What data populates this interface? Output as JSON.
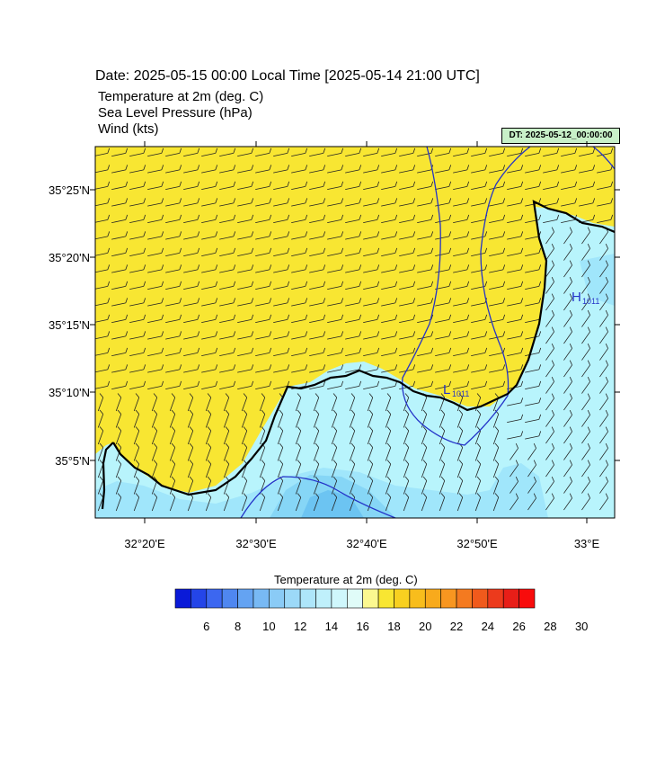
{
  "header": {
    "date": "Date: 2025-05-15  00:00 Local Time [2025-05-14  21:00 UTC]",
    "variables": [
      "Temperature at 2m   (deg. C)",
      "Sea Level Pressure   (hPa)",
      "Wind   (kts)"
    ],
    "dt_label": "DT: 2025-05-12_00:00:00"
  },
  "map": {
    "lat_labels": [
      "35°25'N",
      "35°20'N",
      "35°15'N",
      "35°10'N",
      "35°5'N"
    ],
    "lon_labels": [
      "32°20'E",
      "32°30'E",
      "32°40'E",
      "32°50'E",
      "33°E"
    ],
    "pressure_labels": [
      {
        "letter": "H",
        "value": "1011"
      },
      {
        "letter": "L",
        "value": "1011"
      }
    ],
    "land_color": "#f8e632",
    "sea_colors": [
      "#b8f4fc",
      "#a0e6fb",
      "#86d6f6",
      "#6cc4f2"
    ],
    "coast_color": "#000000",
    "isobar_color": "#2433c8"
  },
  "colorbar": {
    "title": "Temperature at 2m  (deg. C)",
    "colors": [
      "#0a1ad8",
      "#2445e8",
      "#3c67f0",
      "#4f87f0",
      "#64a3f2",
      "#78b9f4",
      "#8acbf6",
      "#9cd9f8",
      "#aee6fa",
      "#bff0fb",
      "#cff7fc",
      "#e0fcf8",
      "#fbf890",
      "#f8e632",
      "#f8d020",
      "#f8bd1c",
      "#f8aa1c",
      "#f89620",
      "#f47a20",
      "#f05a1c",
      "#ec3a1c",
      "#e81e18",
      "#f80c0c"
    ],
    "labels": [
      "6",
      "8",
      "10",
      "12",
      "14",
      "16",
      "18",
      "20",
      "22",
      "24",
      "26",
      "28",
      "30"
    ]
  }
}
